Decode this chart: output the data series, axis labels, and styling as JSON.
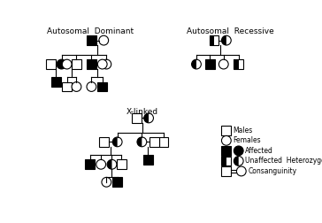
{
  "title_ad": "Autosomal  Dominant",
  "title_ar": "Autosomal  Recessive",
  "title_xl": "X-linked",
  "legend_items": [
    "Males",
    "Females",
    "Affected",
    "Unaffected  Heterozygotes",
    "Consanguinity"
  ],
  "bg_color": "#ffffff",
  "s": 7,
  "r": 7,
  "lw": 0.8
}
